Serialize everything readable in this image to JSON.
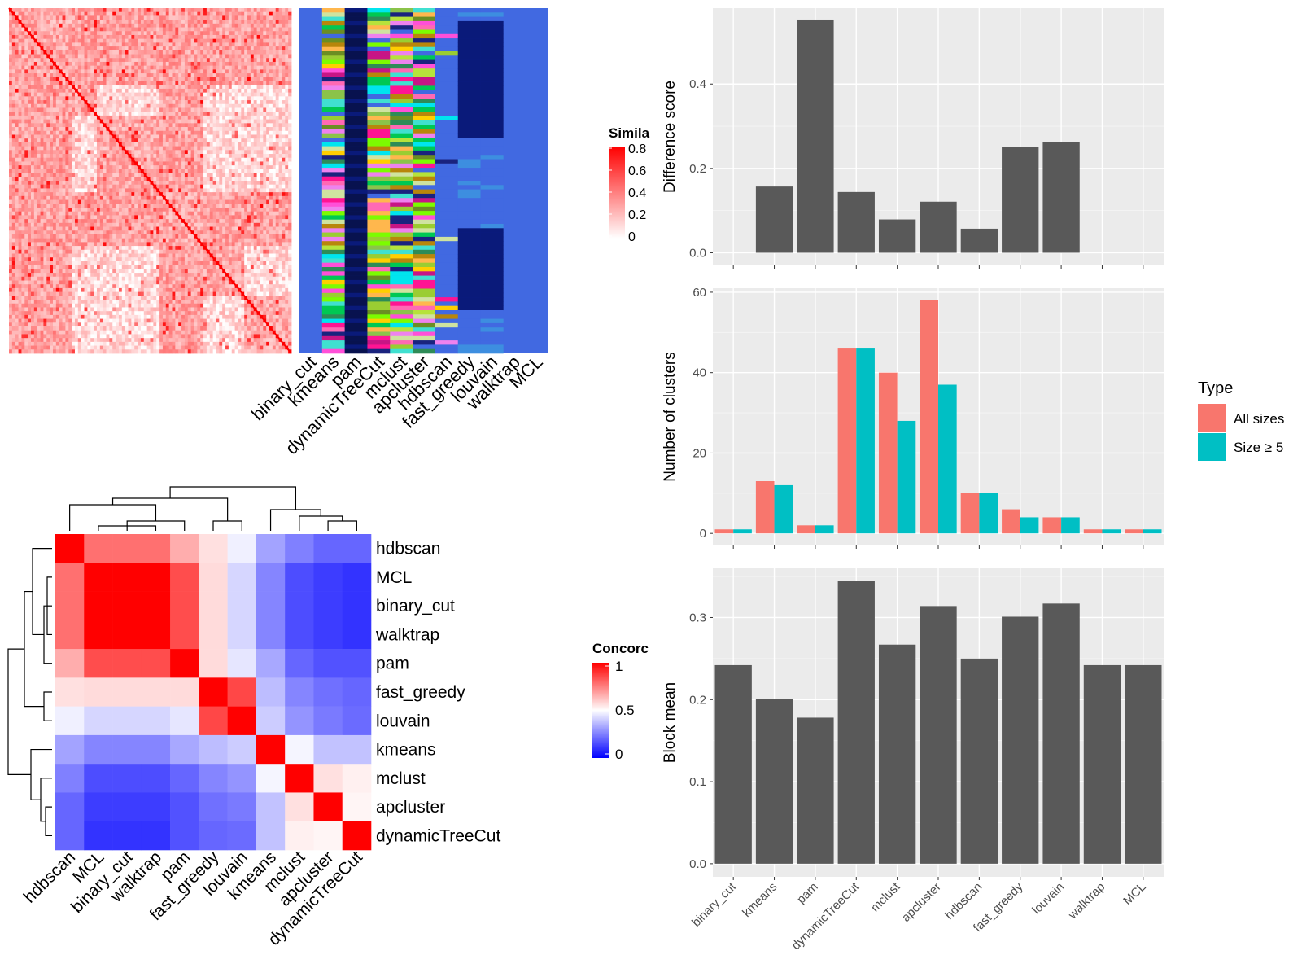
{
  "figure": {
    "colors": {
      "panel_bg": "#ebebeb",
      "grid": "#ffffff",
      "bar": "#595959",
      "all_sizes": "#f8766d",
      "size_ge_5": "#00bfc4",
      "heat_red": "#ff0000",
      "heat_blue": "#0000ff",
      "heat_white": "#ffffff",
      "assign_bg": "#4169e1",
      "navy": "#0a1a7a"
    },
    "similarity_legend": {
      "title": "Simila",
      "labels": [
        "0.8",
        "0.6",
        "0.4",
        "0.2",
        "0"
      ]
    },
    "concordance_legend": {
      "title": "Concorc",
      "labels": [
        "1",
        "0.5",
        "0"
      ]
    }
  },
  "chart_data": [
    {
      "id": "similarity_heatmap",
      "type": "heatmap",
      "title": "",
      "description_values": "cell-by-cell co-clustering similarity, values between 0 and 0.8",
      "legend_title": "Simila",
      "legend_ticks": [
        0.8,
        0.6,
        0.4,
        0.2,
        0
      ],
      "columns": [
        "binary_cut",
        "kmeans",
        "pam",
        "dynamicTreeCut",
        "mclust",
        "apcluster",
        "hdbscan",
        "fast_greedy",
        "louvain",
        "walktrap",
        "MCL"
      ]
    },
    {
      "id": "difference_score",
      "type": "bar",
      "categories": [
        "binary_cut",
        "kmeans",
        "pam",
        "dynamicTreeCut",
        "mclust",
        "apcluster",
        "hdbscan",
        "fast_greedy",
        "louvain",
        "walktrap",
        "MCL"
      ],
      "values": [
        0,
        0.157,
        0.553,
        0.144,
        0.079,
        0.121,
        0.057,
        0.25,
        0.263,
        0,
        0
      ],
      "ylabel": "Difference score",
      "yticks": [
        "0.0",
        "0.2",
        "0.4"
      ],
      "ylim": [
        -0.03,
        0.58
      ]
    },
    {
      "id": "number_of_clusters",
      "type": "bar",
      "categories": [
        "binary_cut",
        "kmeans",
        "pam",
        "dynamicTreeCut",
        "mclust",
        "apcluster",
        "hdbscan",
        "fast_greedy",
        "louvain",
        "walktrap",
        "MCL"
      ],
      "series": [
        {
          "name": "All sizes",
          "values": [
            1,
            13,
            2,
            46,
            40,
            58,
            10,
            6,
            4,
            1,
            1
          ]
        },
        {
          "name": "Size ≥ 5",
          "values": [
            1,
            12,
            2,
            46,
            28,
            37,
            10,
            4,
            4,
            1,
            1
          ]
        }
      ],
      "ylabel": "Number of clusters",
      "yticks": [
        "0",
        "20",
        "40",
        "60"
      ],
      "ylim": [
        -3,
        61
      ],
      "legend_title": "Type",
      "legend_position": "right"
    },
    {
      "id": "block_mean",
      "type": "bar",
      "categories": [
        "binary_cut",
        "kmeans",
        "pam",
        "dynamicTreeCut",
        "mclust",
        "apcluster",
        "hdbscan",
        "fast_greedy",
        "louvain",
        "walktrap",
        "MCL"
      ],
      "values": [
        0.242,
        0.201,
        0.178,
        0.345,
        0.267,
        0.314,
        0.25,
        0.301,
        0.317,
        0.242,
        0.242
      ],
      "ylabel": "Block mean",
      "yticks": [
        "0.0",
        "0.1",
        "0.2",
        "0.3"
      ],
      "ylim": [
        -0.016,
        0.36
      ]
    },
    {
      "id": "concordance_heatmap",
      "type": "heatmap",
      "legend_title": "Concorc",
      "legend_ticks": [
        1,
        0.5,
        0
      ],
      "rows": [
        "hdbscan",
        "MCL",
        "binary_cut",
        "walktrap",
        "pam",
        "fast_greedy",
        "louvain",
        "kmeans",
        "mclust",
        "apcluster",
        "dynamicTreeCut"
      ],
      "columns": [
        "hdbscan",
        "MCL",
        "binary_cut",
        "walktrap",
        "pam",
        "fast_greedy",
        "louvain",
        "kmeans",
        "mclust",
        "apcluster",
        "dynamicTreeCut"
      ],
      "values": [
        [
          1.0,
          0.78,
          0.78,
          0.78,
          0.66,
          0.56,
          0.47,
          0.32,
          0.25,
          0.2,
          0.2
        ],
        [
          0.78,
          1.0,
          1.0,
          1.0,
          0.85,
          0.57,
          0.42,
          0.26,
          0.15,
          0.12,
          0.1
        ],
        [
          0.78,
          1.0,
          1.0,
          1.0,
          0.85,
          0.57,
          0.42,
          0.26,
          0.15,
          0.12,
          0.1
        ],
        [
          0.78,
          1.0,
          1.0,
          1.0,
          0.85,
          0.57,
          0.42,
          0.26,
          0.15,
          0.12,
          0.1
        ],
        [
          0.66,
          0.85,
          0.85,
          0.85,
          1.0,
          0.57,
          0.45,
          0.33,
          0.2,
          0.16,
          0.16
        ],
        [
          0.56,
          0.57,
          0.57,
          0.57,
          0.57,
          1.0,
          0.86,
          0.37,
          0.26,
          0.22,
          0.2
        ],
        [
          0.47,
          0.42,
          0.42,
          0.42,
          0.45,
          0.86,
          1.0,
          0.4,
          0.29,
          0.24,
          0.21
        ],
        [
          0.32,
          0.26,
          0.26,
          0.26,
          0.33,
          0.37,
          0.4,
          1.0,
          0.48,
          0.38,
          0.38
        ],
        [
          0.25,
          0.15,
          0.15,
          0.15,
          0.2,
          0.26,
          0.29,
          0.48,
          1.0,
          0.56,
          0.53
        ],
        [
          0.2,
          0.12,
          0.12,
          0.12,
          0.16,
          0.22,
          0.24,
          0.38,
          0.56,
          1.0,
          0.52
        ],
        [
          0.2,
          0.1,
          0.1,
          0.1,
          0.16,
          0.2,
          0.21,
          0.38,
          0.53,
          0.52,
          1.0
        ]
      ]
    }
  ]
}
